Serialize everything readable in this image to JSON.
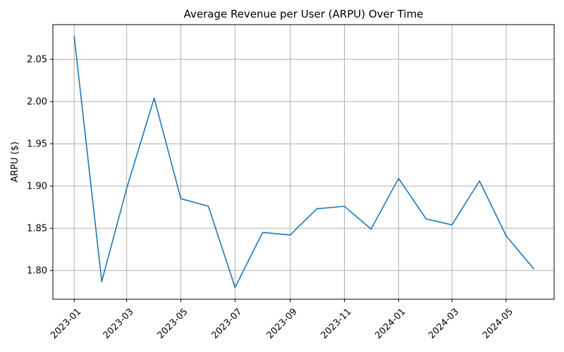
{
  "chart_data": {
    "type": "line",
    "title": "Average Revenue per User (ARPU) Over Time",
    "xlabel": "",
    "ylabel": "ARPU ($)",
    "x": [
      "2023-01-01",
      "2023-02-01",
      "2023-03-01",
      "2023-04-01",
      "2023-05-01",
      "2023-06-01",
      "2023-07-01",
      "2023-08-01",
      "2023-09-01",
      "2023-10-01",
      "2023-11-01",
      "2023-12-01",
      "2024-01-01",
      "2024-02-01",
      "2024-03-01",
      "2024-04-01",
      "2024-05-01",
      "2024-06-01"
    ],
    "series": [
      {
        "values": [
          2.077,
          1.787,
          1.897,
          2.004,
          1.885,
          1.876,
          1.78,
          1.845,
          1.842,
          1.873,
          1.876,
          1.849,
          1.909,
          1.861,
          1.854,
          1.906,
          1.841,
          1.802
        ],
        "color": "#1f77b4"
      }
    ],
    "xticks": [
      "2023-01",
      "2023-03",
      "2023-05",
      "2023-07",
      "2023-09",
      "2023-11",
      "2024-01",
      "2024-03",
      "2024-05"
    ],
    "yticks": [
      "1.80",
      "1.85",
      "1.90",
      "1.95",
      "2.00",
      "2.05"
    ],
    "ylim": [
      1.766,
      2.091
    ],
    "xlim": [
      "2022-12-08",
      "2024-06-24"
    ],
    "grid": true,
    "legend": "none"
  }
}
